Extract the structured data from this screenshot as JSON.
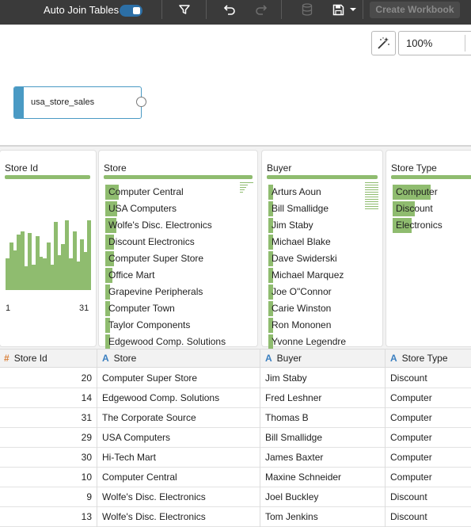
{
  "toolbar": {
    "auto_join_label": "Auto Join Tables",
    "auto_join_on": true,
    "create_workbook_label": "Create Workbook"
  },
  "canvas": {
    "zoom": "100%",
    "node_name": "usa_store_sales"
  },
  "profile": {
    "store_id": {
      "title": "Store Id",
      "min": "1",
      "max": "31",
      "histogram": [
        40,
        60,
        50,
        70,
        74,
        30,
        72,
        32,
        68,
        42,
        40,
        60,
        32,
        86,
        44,
        58,
        88,
        40,
        74,
        36,
        64,
        48,
        88
      ]
    },
    "store": {
      "title": "Store",
      "values": [
        {
          "label": "Computer Central",
          "share": 0.11
        },
        {
          "label": "USA Computers",
          "share": 0.1
        },
        {
          "label": "Wolfe's Disc. Electronics",
          "share": 0.09
        },
        {
          "label": "Discount Electronics",
          "share": 0.07
        },
        {
          "label": "Computer Super Store",
          "share": 0.07
        },
        {
          "label": "Office Mart",
          "share": 0.06
        },
        {
          "label": "Grapevine Peripherals",
          "share": 0.04
        },
        {
          "label": "Computer Town",
          "share": 0.04
        },
        {
          "label": "Taylor Components",
          "share": 0.04
        },
        {
          "label": "Edgewood Comp. Solutions",
          "share": 0.04
        }
      ]
    },
    "buyer": {
      "title": "Buyer",
      "values": [
        {
          "label": "Arturs Aoun",
          "share": 0.04
        },
        {
          "label": "Bill Smallidge",
          "share": 0.04
        },
        {
          "label": "Jim Staby",
          "share": 0.04
        },
        {
          "label": "Michael Blake",
          "share": 0.04
        },
        {
          "label": "Dave Swiderski",
          "share": 0.04
        },
        {
          "label": "Michael Marquez",
          "share": 0.04
        },
        {
          "label": "Joe O\"Connor",
          "share": 0.04
        },
        {
          "label": "Carie Winston",
          "share": 0.04
        },
        {
          "label": "Ron Mononen",
          "share": 0.04
        },
        {
          "label": "Yvonne Legendre",
          "share": 0.04
        }
      ]
    },
    "store_type": {
      "title": "Store Type",
      "values": [
        {
          "label": "Computer",
          "share": 0.48
        },
        {
          "label": "Discount",
          "share": 0.28
        },
        {
          "label": "Electronics",
          "share": 0.24
        }
      ]
    }
  },
  "table": {
    "columns": [
      {
        "type_icon": "#",
        "name": "Store Id"
      },
      {
        "type_icon": "A",
        "name": "Store"
      },
      {
        "type_icon": "A",
        "name": "Buyer"
      },
      {
        "type_icon": "A",
        "name": "Store Type"
      }
    ],
    "rows": [
      [
        "20",
        "Computer Super Store",
        "Jim Staby",
        "Discount"
      ],
      [
        "14",
        "Edgewood Comp. Solutions",
        "Fred Leshner",
        "Computer"
      ],
      [
        "31",
        "The Corporate Source",
        "Thomas B",
        "Computer"
      ],
      [
        "29",
        "USA Computers",
        "Bill Smallidge",
        "Computer"
      ],
      [
        "30",
        "Hi-Tech Mart",
        "James Baxter",
        "Computer"
      ],
      [
        "10",
        "Computer Central",
        "Maxine Schneider",
        "Computer"
      ],
      [
        "9",
        "Wolfe's Disc. Electronics",
        "Joel Buckley",
        "Discount"
      ],
      [
        "13",
        "Wolfe's Disc. Electronics",
        "Tom Jenkins",
        "Discount"
      ]
    ]
  },
  "colors": {
    "toolbar_bg": "#3a3a3a",
    "accent": "#2c6fa6",
    "profile_bar": "#8fbc6f",
    "node_stripe": "#4a9ac4"
  },
  "icons": [
    "filter-icon",
    "undo-icon",
    "redo-icon",
    "database-icon",
    "save-icon",
    "chevron-down-icon",
    "magic-wand-icon"
  ]
}
